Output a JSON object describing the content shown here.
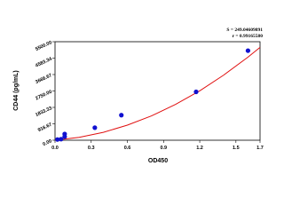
{
  "chart_data": {
    "type": "scatter",
    "x_label": "OD450",
    "y_label": "CD44 (pg/mL)",
    "annotations": [
      "S = 249.04609891",
      "r = 0.99165580"
    ],
    "xlim": [
      0,
      1.7
    ],
    "xticks": [
      {
        "value": 0,
        "label": "0.0"
      },
      0.3,
      0.6,
      0.9,
      1.2,
      1.5,
      1.7
    ],
    "ylim": [
      0,
      5500
    ],
    "yticks": [
      {
        "value": 0,
        "label": "0.00"
      },
      916.67,
      1833.33,
      {
        "value": 2750,
        "label": "2750.00"
      },
      3666.67,
      4583.34,
      {
        "value": 5500,
        "label": "5500.00"
      }
    ],
    "series": [
      {
        "color": "#1010d0",
        "x": [
          0.02,
          0.05,
          0.08,
          0.08,
          0.33,
          0.55,
          1.17,
          1.6
        ],
        "values": [
          40,
          60,
          200,
          350,
          700,
          1400,
          2700,
          5000
        ]
      }
    ],
    "curve": {
      "color": "#e01010",
      "x": [
        0,
        0.2,
        0.4,
        0.6,
        0.8,
        1.0,
        1.2,
        1.4,
        1.6,
        1.7
      ],
      "values": [
        0,
        160,
        440,
        840,
        1360,
        2000,
        2760,
        3640,
        4640,
        5185
      ]
    }
  }
}
